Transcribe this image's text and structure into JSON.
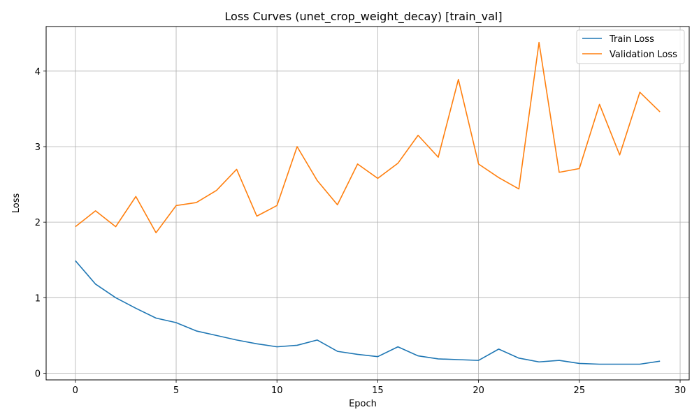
{
  "chart_data": {
    "type": "line",
    "title": "Loss Curves (unet_crop_weight_decay) [train_val]",
    "xlabel": "Epoch",
    "ylabel": "Loss",
    "x": [
      0,
      1,
      2,
      3,
      4,
      5,
      6,
      7,
      8,
      9,
      10,
      11,
      12,
      13,
      14,
      15,
      16,
      17,
      18,
      19,
      20,
      21,
      22,
      23,
      24,
      25,
      26,
      27,
      28,
      29
    ],
    "xlim": [
      -1.45,
      30.45
    ],
    "ylim": [
      -0.088,
      4.59
    ],
    "xticks": [
      0,
      5,
      10,
      15,
      20,
      25,
      30
    ],
    "yticks": [
      0,
      1,
      2,
      3,
      4
    ],
    "grid": true,
    "legend_position": "top-right",
    "series": [
      {
        "name": "Train Loss",
        "color": "#1f77b4",
        "values": [
          1.49,
          1.18,
          1.0,
          0.86,
          0.73,
          0.67,
          0.56,
          0.5,
          0.44,
          0.39,
          0.35,
          0.37,
          0.44,
          0.29,
          0.25,
          0.22,
          0.35,
          0.23,
          0.19,
          0.18,
          0.17,
          0.32,
          0.2,
          0.15,
          0.17,
          0.13,
          0.12,
          0.12,
          0.12,
          0.16
        ]
      },
      {
        "name": "Validation Loss",
        "color": "#ff7f0e",
        "values": [
          1.94,
          2.15,
          1.94,
          2.34,
          1.86,
          2.22,
          2.26,
          2.42,
          2.7,
          2.08,
          2.22,
          3.0,
          2.55,
          2.23,
          2.77,
          2.58,
          2.78,
          3.15,
          2.86,
          3.89,
          2.77,
          2.59,
          2.44,
          4.38,
          2.66,
          2.71,
          3.56,
          2.89,
          3.72,
          3.46
        ]
      }
    ]
  }
}
